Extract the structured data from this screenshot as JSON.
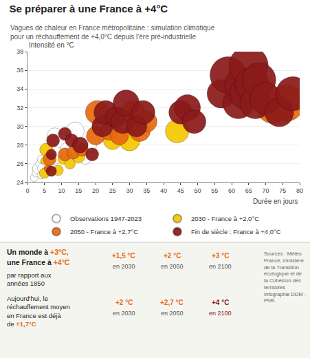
{
  "chart_data": {
    "type": "scatter",
    "title": "Se préparer à une France à +4°C",
    "subtitle": "Vagues de chaleur en France métropolitaine : simulation climatique\npour un réchauffement de +4,0°C depuis l'ère pré-industrielle",
    "xlabel": "Durée en jours",
    "ylabel": "Intensité en °C",
    "xlim": [
      0,
      80
    ],
    "ylim": [
      24,
      38
    ],
    "xticks": [
      0,
      5,
      10,
      15,
      20,
      25,
      30,
      35,
      40,
      45,
      50,
      55,
      60,
      65,
      70,
      75,
      80
    ],
    "yticks": [
      24,
      26,
      28,
      30,
      32,
      34,
      36,
      38
    ],
    "grid": "y",
    "legend": "bottom",
    "marker": "circle",
    "series": [
      {
        "name": "Observations 1947-2023",
        "color": "#ffffff",
        "x": [
          2,
          2.5,
          3,
          3.5,
          4,
          4.5,
          4,
          8,
          8,
          9,
          10,
          12,
          14,
          17,
          18
        ],
        "values": [
          24.5,
          25.0,
          25.5,
          26.0,
          24.8,
          25.5,
          26.5,
          26.5,
          29.0,
          27.5,
          28.5,
          27.5,
          29.5,
          26.5,
          28.0
        ],
        "sizes": [
          3,
          3,
          4,
          3,
          3,
          4,
          3,
          4,
          6,
          5,
          6,
          6,
          7,
          4,
          6
        ]
      },
      {
        "name": "2030 - France à +2,0°C",
        "color": "#f5c800",
        "x": [
          5,
          5,
          5.5,
          9,
          10.5,
          12.5,
          15,
          25,
          30,
          44
        ],
        "values": [
          25.0,
          26.3,
          27.5,
          25.3,
          26.5,
          26.0,
          26.8,
          28.5,
          28.5,
          29.5
        ],
        "sizes": [
          4,
          3,
          5,
          4,
          4,
          4,
          5,
          7,
          8,
          9
        ]
      },
      {
        "name": "2050 - France à +2,7°C",
        "color": "#e86a10",
        "x": [
          6,
          6.5,
          11,
          13.5,
          16,
          20,
          20.5,
          24,
          27,
          31,
          33,
          35,
          72,
          76
        ],
        "values": [
          25.5,
          26.5,
          27.0,
          27.2,
          27.5,
          29.0,
          31.5,
          29.5,
          29.0,
          31.5,
          29.5,
          30.5,
          32.0,
          32.5
        ],
        "sizes": [
          3,
          5,
          5,
          5,
          5,
          7,
          9,
          7,
          7,
          9,
          8,
          8,
          12,
          14
        ]
      },
      {
        "name": "Fin de siècle : France à +4,0°C",
        "color": "#8b1a1a",
        "x": [
          7,
          7,
          7.5,
          11,
          13,
          15.5,
          19,
          22,
          23,
          26,
          28,
          29,
          32,
          34,
          45,
          47,
          49,
          57,
          59,
          62,
          63,
          64,
          65,
          66,
          67,
          68,
          70,
          74,
          78
        ],
        "values": [
          25.2,
          27.0,
          28.5,
          29.2,
          28.5,
          28.0,
          27.0,
          30.0,
          31.5,
          31.0,
          30.5,
          32.5,
          30.0,
          31.5,
          31.5,
          32.0,
          30.5,
          33.5,
          35.5,
          32.5,
          34.5,
          33.5,
          36.5,
          34.5,
          32.5,
          35.0,
          33.0,
          31.5,
          33.5
        ],
        "sizes": [
          4,
          4,
          5,
          5,
          5,
          6,
          5,
          8,
          9,
          8,
          9,
          10,
          8,
          9,
          9,
          10,
          9,
          11,
          14,
          12,
          13,
          12,
          15,
          13,
          12,
          13,
          12,
          11,
          13
        ]
      }
    ],
    "annotations": [
      {
        "text": "Un monde à ",
        "color": "#222222"
      },
      {
        "text": "+3°C,",
        "color": "#e86a10"
      },
      {
        "text": "une France à ",
        "color": "#222222"
      },
      {
        "text": "+4°C",
        "color": "#e86a10"
      },
      {
        "text": "par rapport aux\nannées 1850",
        "color": "#222222"
      },
      {
        "text": "Aujourd'hui, le\nréchauffement moyen\nen France est déjà\nde ",
        "color": "#222222"
      },
      {
        "text": "+1,7°C",
        "color": "#e86a10"
      },
      {
        "text": "+1,5 °C",
        "color": "#e86a10"
      },
      {
        "text": "+2 °C",
        "color": "#e86a10"
      },
      {
        "text": "+3 °C",
        "color": "#e86a10"
      },
      {
        "text": "en 2030",
        "color": "#555555"
      },
      {
        "text": "en 2050",
        "color": "#555555"
      },
      {
        "text": "en 2100",
        "color": "#555555"
      },
      {
        "text": "+2 °C",
        "color": "#e86a10"
      },
      {
        "text": "+2,7 °C",
        "color": "#e86a10"
      },
      {
        "text": "+4 °C",
        "color": "#8b1a1a"
      },
      {
        "text": "en 2030",
        "color": "#555555"
      },
      {
        "text": "en 2050",
        "color": "#555555"
      },
      {
        "text": "en 2100",
        "color": "#8b1a1a"
      },
      {
        "text": "Sources : Météo\nFrance, ministère\nde la Transition\nécologique et de\nla Cohésion des\nterritoires\nInfographie DDM -\nPhR.",
        "color": "#666666"
      }
    ]
  }
}
